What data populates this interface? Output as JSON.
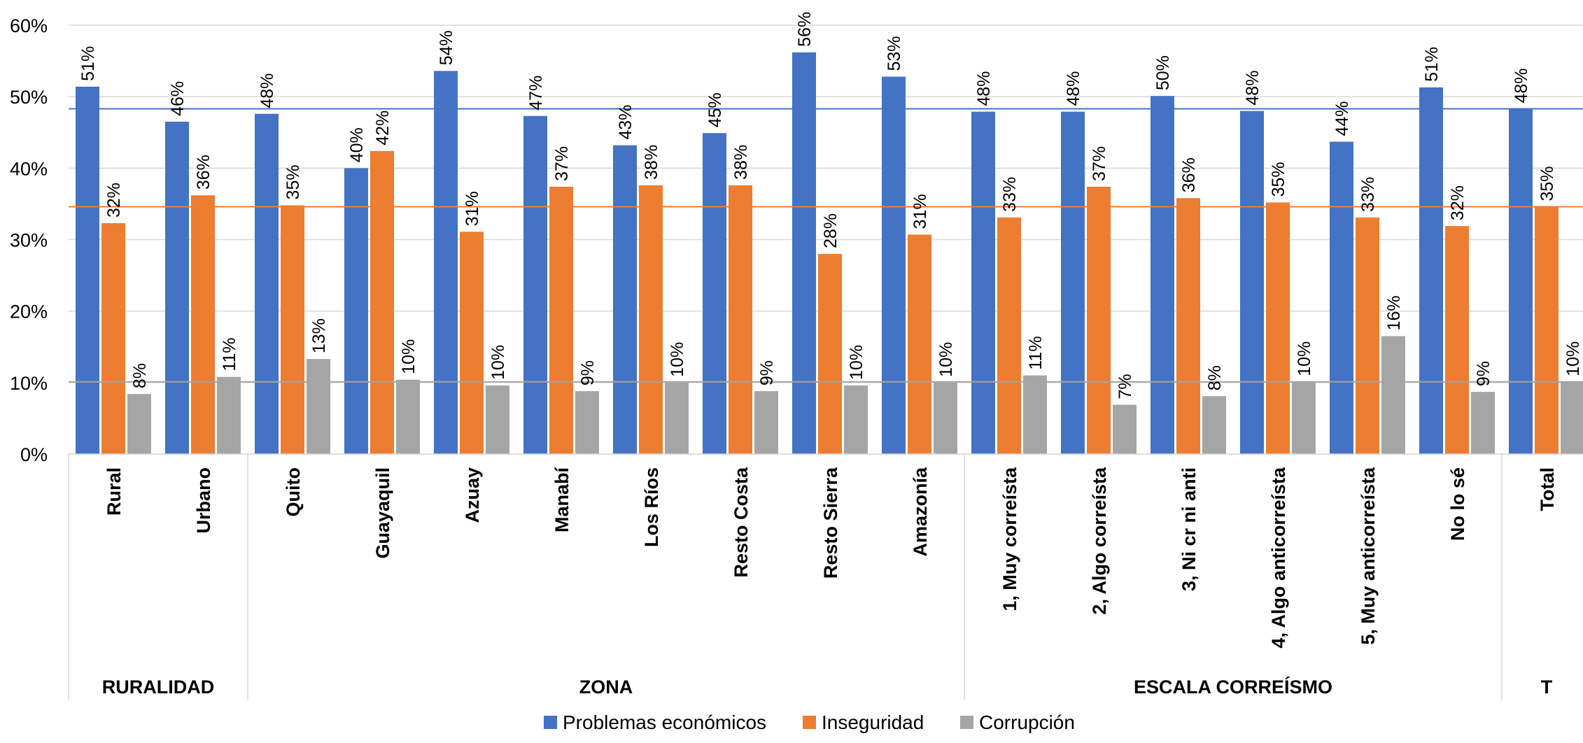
{
  "chart_data": {
    "type": "bar",
    "title": "",
    "xlabel": "",
    "ylabel": "",
    "ylim": [
      0,
      0.6
    ],
    "y_ticks": [
      "0%",
      "10%",
      "20%",
      "30%",
      "40%",
      "50%",
      "60%"
    ],
    "y_tick_values": [
      0,
      0.1,
      0.2,
      0.3,
      0.4,
      0.5,
      0.6
    ],
    "grid": true,
    "legend_position": "bottom",
    "categories": [
      "Rural",
      "Urbano",
      "Quito",
      "Guayaquil",
      "Azuay",
      "Manabí",
      "Los Ríos",
      "Resto Costa",
      "Resto Sierra",
      "Amazonía",
      "1, Muy correísta",
      "2, Algo correísta",
      "3, Ni cr ni anti",
      "4, Algo anticorreísta",
      "5, Muy anticorreísta",
      "No lo sé",
      "Total"
    ],
    "groups": [
      {
        "label": "RURALIDAD",
        "count": 2
      },
      {
        "label": "ZONA",
        "count": 8
      },
      {
        "label": "ESCALA CORREÍSMO",
        "count": 6
      },
      {
        "label": "T",
        "count": 1
      }
    ],
    "series": [
      {
        "name": "Problemas económicos",
        "color": "#4472C4",
        "values": [
          0.514,
          0.465,
          0.476,
          0.4,
          0.536,
          0.473,
          0.432,
          0.449,
          0.562,
          0.528,
          0.479,
          0.479,
          0.501,
          0.48,
          0.437,
          0.513,
          0.483
        ],
        "labels": [
          "51%",
          "46%",
          "48%",
          "40%",
          "54%",
          "47%",
          "43%",
          "45%",
          "56%",
          "53%",
          "48%",
          "48%",
          "50%",
          "48%",
          "44%",
          "51%",
          "48%"
        ]
      },
      {
        "name": "Inseguridad",
        "color": "#ED7D31",
        "values": [
          0.323,
          0.362,
          0.348,
          0.424,
          0.311,
          0.374,
          0.376,
          0.376,
          0.28,
          0.307,
          0.331,
          0.374,
          0.358,
          0.352,
          0.331,
          0.319,
          0.346
        ],
        "labels": [
          "32%",
          "36%",
          "35%",
          "42%",
          "31%",
          "37%",
          "38%",
          "38%",
          "28%",
          "31%",
          "33%",
          "37%",
          "36%",
          "35%",
          "33%",
          "32%",
          "35%"
        ]
      },
      {
        "name": "Corrupción",
        "color": "#A5A5A5",
        "values": [
          0.084,
          0.108,
          0.133,
          0.104,
          0.096,
          0.088,
          0.1,
          0.088,
          0.096,
          0.1,
          0.11,
          0.069,
          0.081,
          0.101,
          0.165,
          0.087,
          0.101
        ],
        "labels": [
          "8%",
          "11%",
          "13%",
          "10%",
          "10%",
          "9%",
          "10%",
          "9%",
          "10%",
          "10%",
          "11%",
          "7%",
          "8%",
          "10%",
          "16%",
          "9%",
          "10%"
        ]
      }
    ],
    "reference_lines": [
      {
        "series": "Problemas económicos",
        "value": 0.483,
        "color": "#4472C4"
      },
      {
        "series": "Inseguridad",
        "value": 0.346,
        "color": "#ED7D31"
      },
      {
        "series": "Corrupción",
        "value": 0.101,
        "color": "#A5A5A5"
      }
    ]
  }
}
